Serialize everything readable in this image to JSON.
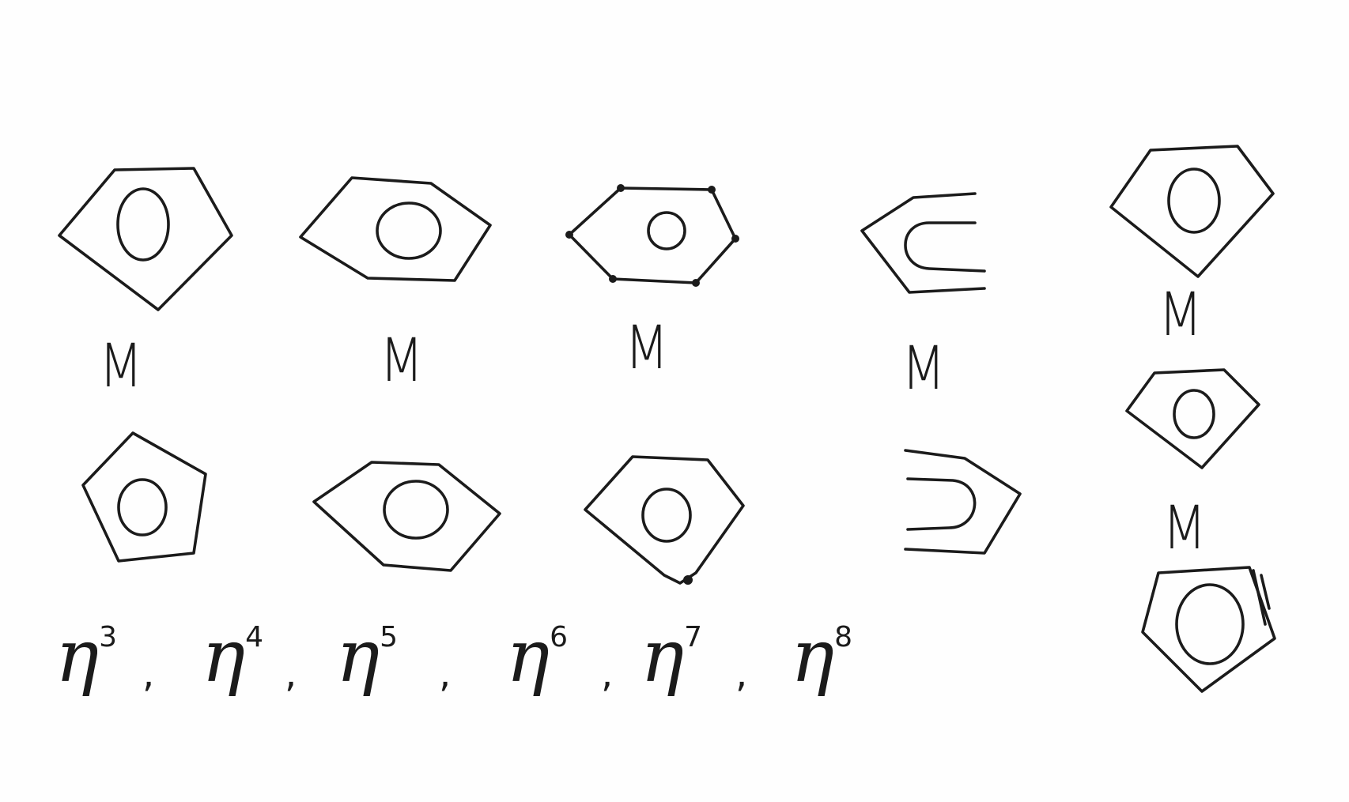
{
  "metal_labels": {
    "m1": "M",
    "m2": "M",
    "m3": "M",
    "m4": "M",
    "m5_top": "M",
    "m5_bottom": "M"
  },
  "hapticity": {
    "symbol": "η",
    "items": [
      {
        "sup": "3",
        "sep": ","
      },
      {
        "sup": "4",
        "sep": ","
      },
      {
        "sup": "5",
        "sep": ","
      },
      {
        "sup": "6",
        "sep": ","
      },
      {
        "sup": "7",
        "sep": ","
      },
      {
        "sup": "8",
        "sep": ""
      }
    ]
  },
  "ink_color": "#1b1b1b"
}
